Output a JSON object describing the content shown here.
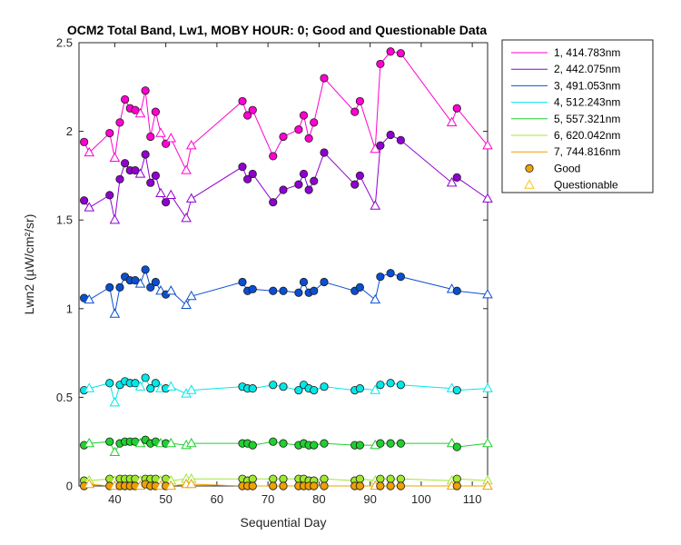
{
  "chart_data": {
    "type": "line",
    "title": "OCM2 Total Band, Lw1, MOBY HOUR: 0;  Good and Questionable Data",
    "xlabel": "Sequential Day",
    "ylabel": "Lwn2 (µW/cm²/sr)",
    "xlim": [
      33,
      113
    ],
    "ylim": [
      0,
      2.5
    ],
    "xticks": [
      40,
      50,
      60,
      70,
      80,
      90,
      100,
      110
    ],
    "yticks": [
      0,
      0.5,
      1,
      1.5,
      2,
      2.5
    ],
    "grid": false,
    "legend": "outside-top-right",
    "marker_legend": [
      {
        "label": "Good",
        "marker": "circle",
        "color": "#f0a30a"
      },
      {
        "label": "Questionable",
        "marker": "triangle",
        "color": "#f5c518"
      }
    ],
    "x": [
      34,
      35,
      39,
      40,
      41,
      42,
      43,
      44,
      45,
      46,
      47,
      48,
      49,
      50,
      51,
      54,
      55,
      65,
      66,
      67,
      71,
      73,
      76,
      77,
      78,
      79,
      81,
      87,
      88,
      91,
      92,
      94,
      96,
      106,
      107,
      113
    ],
    "quality": [
      "G",
      "Q",
      "G",
      "Q",
      "G",
      "G",
      "G",
      "G",
      "Q",
      "G",
      "G",
      "G",
      "Q",
      "G",
      "Q",
      "Q",
      "Q",
      "G",
      "G",
      "G",
      "G",
      "G",
      "G",
      "G",
      "G",
      "G",
      "G",
      "G",
      "G",
      "Q",
      "G",
      "G",
      "G",
      "Q",
      "G",
      "Q"
    ],
    "series": [
      {
        "name": "1, 414.783nm",
        "color": "#ff00d0",
        "values": [
          1.94,
          1.88,
          1.99,
          1.85,
          2.05,
          2.18,
          2.13,
          2.12,
          2.1,
          2.23,
          1.97,
          2.11,
          1.99,
          1.93,
          1.96,
          1.78,
          1.92,
          2.17,
          2.09,
          2.12,
          1.86,
          1.97,
          2.01,
          2.09,
          1.96,
          2.05,
          2.3,
          2.11,
          2.17,
          1.9,
          2.38,
          2.45,
          2.44,
          2.05,
          2.13,
          1.92
        ]
      },
      {
        "name": "2, 442.075nm",
        "color": "#9000d0",
        "values": [
          1.61,
          1.57,
          1.64,
          1.5,
          1.73,
          1.82,
          1.78,
          1.78,
          1.76,
          1.87,
          1.71,
          1.75,
          1.65,
          1.6,
          1.64,
          1.51,
          1.62,
          1.8,
          1.73,
          1.76,
          1.6,
          1.67,
          1.7,
          1.76,
          1.67,
          1.72,
          1.88,
          1.7,
          1.75,
          1.58,
          1.92,
          1.98,
          1.95,
          1.71,
          1.74,
          1.62
        ]
      },
      {
        "name": "3, 491.053nm",
        "color": "#0b4fd0",
        "values": [
          1.06,
          1.05,
          1.12,
          0.97,
          1.12,
          1.18,
          1.16,
          1.16,
          1.14,
          1.22,
          1.12,
          1.15,
          1.1,
          1.08,
          1.1,
          1.02,
          1.07,
          1.15,
          1.1,
          1.11,
          1.1,
          1.1,
          1.09,
          1.15,
          1.09,
          1.1,
          1.15,
          1.1,
          1.12,
          1.05,
          1.18,
          1.2,
          1.18,
          1.11,
          1.1,
          1.08
        ]
      },
      {
        "name": "4, 512.243nm",
        "color": "#00e8e8",
        "values": [
          0.54,
          0.55,
          0.58,
          0.47,
          0.57,
          0.59,
          0.58,
          0.58,
          0.56,
          0.61,
          0.55,
          0.58,
          0.55,
          0.55,
          0.56,
          0.52,
          0.54,
          0.56,
          0.55,
          0.55,
          0.57,
          0.56,
          0.54,
          0.57,
          0.55,
          0.54,
          0.56,
          0.54,
          0.55,
          0.54,
          0.57,
          0.58,
          0.57,
          0.55,
          0.54,
          0.55
        ]
      },
      {
        "name": "5, 557.321nm",
        "color": "#20d030",
        "values": [
          0.23,
          0.24,
          0.25,
          0.19,
          0.24,
          0.25,
          0.25,
          0.25,
          0.24,
          0.26,
          0.24,
          0.25,
          0.24,
          0.24,
          0.24,
          0.23,
          0.24,
          0.24,
          0.24,
          0.23,
          0.25,
          0.24,
          0.23,
          0.24,
          0.23,
          0.23,
          0.24,
          0.23,
          0.23,
          0.23,
          0.24,
          0.24,
          0.24,
          0.24,
          0.22,
          0.24
        ]
      },
      {
        "name": "6, 620.042nm",
        "color": "#a0e830",
        "values": [
          0.03,
          0.03,
          0.04,
          0.03,
          0.04,
          0.04,
          0.04,
          0.04,
          0.03,
          0.04,
          0.04,
          0.04,
          0.03,
          0.04,
          0.03,
          0.04,
          0.04,
          0.04,
          0.03,
          0.04,
          0.04,
          0.04,
          0.04,
          0.04,
          0.03,
          0.03,
          0.04,
          0.03,
          0.04,
          0.03,
          0.04,
          0.04,
          0.04,
          0.03,
          0.04,
          0.03
        ]
      },
      {
        "name": "7, 744.816nm",
        "color": "#f0a000",
        "values": [
          0.0,
          0.01,
          0.0,
          0.0,
          0.0,
          0.0,
          0.0,
          0.0,
          0.0,
          0.01,
          0.0,
          0.0,
          0.0,
          0.0,
          0.0,
          0.01,
          0.01,
          0.0,
          0.0,
          0.0,
          0.0,
          0.0,
          0.0,
          0.0,
          0.0,
          0.0,
          0.0,
          0.0,
          0.0,
          0.0,
          0.0,
          0.0,
          0.0,
          0.0,
          0.0,
          0.0
        ]
      }
    ]
  }
}
